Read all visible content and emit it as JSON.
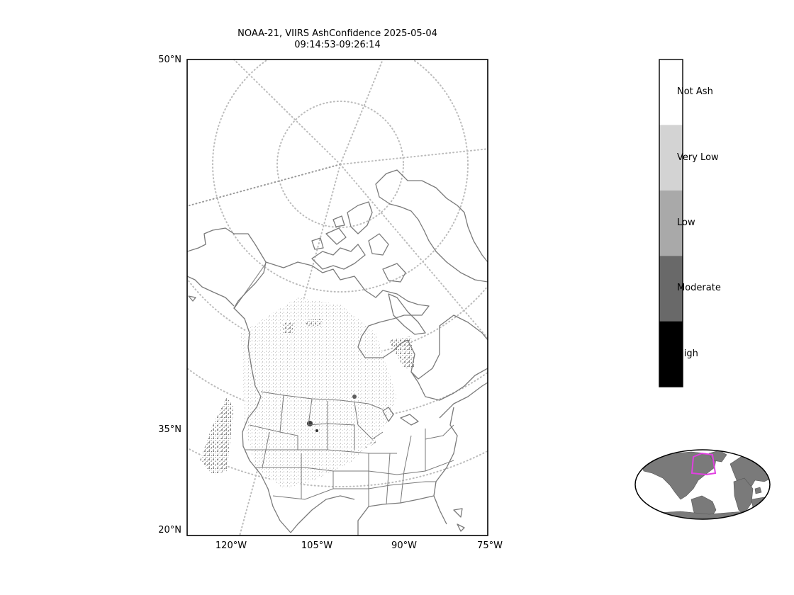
{
  "title": {
    "line1": "NOAA-21, VIIRS AshConfidence 2025-05-04",
    "line2": "09:14:53-09:26:14"
  },
  "map": {
    "lat_labels": [
      "50°N",
      "35°N",
      "20°N"
    ],
    "lon_labels": [
      "120°W",
      "105°W",
      "90°W",
      "75°W"
    ],
    "extent": {
      "lon": [
        -128,
        -75
      ],
      "lat": [
        20,
        50
      ]
    },
    "coastline_color": "#7a7a7a",
    "graticule_color": "#bbbbbb"
  },
  "colorbar": {
    "categories": [
      {
        "label": "Not Ash",
        "color": "#ffffff"
      },
      {
        "label": "Very Low",
        "color": "#d3d3d3"
      },
      {
        "label": "Low",
        "color": "#a9a9a9"
      },
      {
        "label": "Moderate",
        "color": "#696969"
      },
      {
        "label": "High",
        "color": "#000000"
      }
    ]
  },
  "inset": {
    "highlight_color": "#e040e0",
    "land_color": "#7a7a7a"
  }
}
